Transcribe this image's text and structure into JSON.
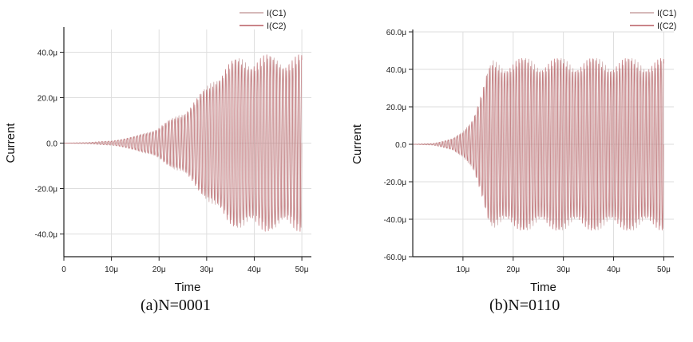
{
  "chart_data": [
    {
      "type": "line",
      "xlabel": "Time",
      "ylabel": "Current",
      "xlim": [
        0,
        52
      ],
      "ylim": [
        -50,
        50
      ],
      "x_ticks": [
        0,
        10,
        20,
        30,
        40,
        50
      ],
      "x_tick_labels": [
        "0",
        "10μ",
        "20μ",
        "30μ",
        "40μ",
        "50μ"
      ],
      "y_ticks": [
        -40,
        -20,
        0,
        20,
        40
      ],
      "y_tick_labels": [
        "-40.0μ",
        "-20.0μ",
        "0.0",
        "20.0μ",
        "40.0μ"
      ],
      "grid": true,
      "legend": "top-right",
      "series": [
        {
          "name": "I(C1)",
          "color": "#c9a2a2",
          "x": [
            0,
            5,
            10,
            15,
            20,
            25,
            28,
            30,
            32,
            34,
            36,
            38,
            40,
            45,
            50
          ],
          "envelope": [
            0,
            0.3,
            1,
            3,
            7,
            14,
            20,
            25,
            31,
            35,
            37,
            38,
            38,
            38,
            38
          ]
        },
        {
          "name": "I(C2)",
          "color": "#b85c62",
          "x": [
            0,
            5,
            10,
            15,
            20,
            25,
            28,
            30,
            32,
            34,
            36,
            38,
            40,
            45,
            50
          ],
          "envelope": [
            0,
            0.3,
            1,
            3,
            7,
            14,
            20,
            25,
            31,
            35,
            37,
            38,
            39,
            39,
            39
          ]
        }
      ]
    },
    {
      "type": "line",
      "xlabel": "Time",
      "ylabel": "Current",
      "xlim": [
        0,
        52
      ],
      "ylim": [
        -60,
        60
      ],
      "x_ticks": [
        10,
        20,
        30,
        40,
        50
      ],
      "x_tick_labels": [
        "10μ",
        "20μ",
        "30μ",
        "40μ",
        "50μ"
      ],
      "y_ticks": [
        -60,
        -40,
        -20,
        0,
        20,
        40,
        60
      ],
      "y_tick_labels": [
        "-60.0μ",
        "-40.0μ",
        "-20.0μ",
        "0.0",
        "20.0μ",
        "40.0μ",
        "60.0μ"
      ],
      "grid": true,
      "legend": "top-right",
      "series": [
        {
          "name": "I(C1)",
          "color": "#c9a2a2",
          "x": [
            0,
            4,
            8,
            10,
            12,
            14,
            15,
            16,
            20,
            30,
            40,
            50
          ],
          "envelope": [
            0,
            0.5,
            3,
            7,
            15,
            30,
            40,
            45,
            46,
            46,
            46,
            46
          ]
        },
        {
          "name": "I(C2)",
          "color": "#b85c62",
          "x": [
            0,
            4,
            8,
            10,
            12,
            14,
            15,
            16,
            20,
            30,
            40,
            50
          ],
          "envelope": [
            0,
            0.5,
            3,
            7,
            15,
            30,
            40,
            45,
            46,
            46,
            46,
            46
          ]
        }
      ]
    }
  ],
  "captions": [
    "(a)N=0001",
    "(b)N=0110"
  ]
}
